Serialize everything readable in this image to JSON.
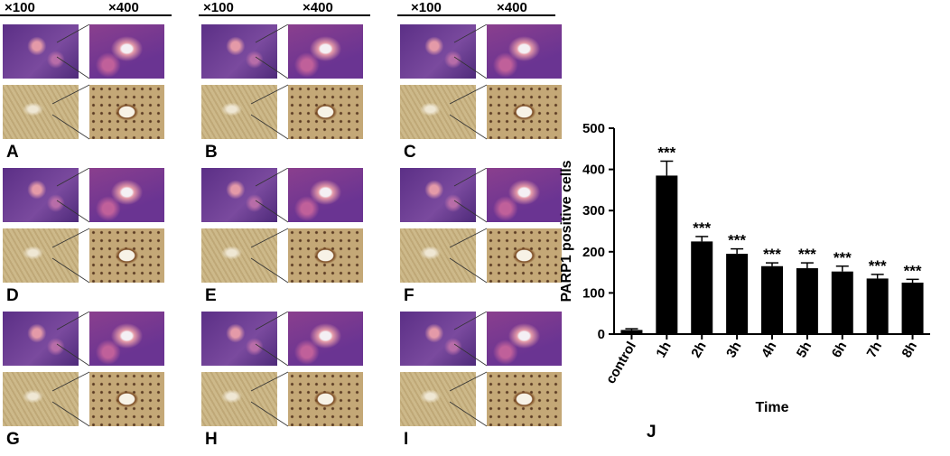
{
  "magnifications": {
    "low": "×100",
    "high": "×400"
  },
  "panels": [
    {
      "label": "A",
      "top": "he",
      "bottom": "ihc"
    },
    {
      "label": "B",
      "top": "he",
      "bottom": "ihc"
    },
    {
      "label": "C",
      "top": "he",
      "bottom": "ihc"
    },
    {
      "label": "D",
      "top": "he",
      "bottom": "ihc"
    },
    {
      "label": "E",
      "top": "he",
      "bottom": "ihc"
    },
    {
      "label": "F",
      "top": "he",
      "bottom": "ihc"
    },
    {
      "label": "G",
      "top": "he",
      "bottom": "ihc"
    },
    {
      "label": "H",
      "top": "he",
      "bottom": "ihc"
    },
    {
      "label": "I",
      "top": "he",
      "bottom": "ihc"
    }
  ],
  "colors": {
    "he_low": "#5b2f86",
    "he_high": "#8a3f8e",
    "he_pink": "#e49aa8",
    "ihc_low": "#cdb98a",
    "ihc_high": "#c4a877",
    "bar": "#000000"
  },
  "chart_panel_label": "J",
  "chart_data": {
    "type": "bar",
    "categories": [
      "control",
      "1h",
      "2h",
      "3h",
      "4h",
      "5h",
      "6h",
      "7h",
      "8h"
    ],
    "values": [
      10,
      385,
      225,
      195,
      165,
      160,
      152,
      135,
      125
    ],
    "errors": [
      3,
      35,
      12,
      12,
      8,
      13,
      13,
      10,
      8
    ],
    "annotations": [
      "",
      "***",
      "***",
      "***",
      "***",
      "***",
      "***",
      "***",
      "***"
    ],
    "xlabel": "Time",
    "ylabel": "PARP1 positive cells",
    "ylim": [
      0,
      500
    ],
    "yticks": [
      0,
      100,
      200,
      300,
      400,
      500
    ]
  }
}
